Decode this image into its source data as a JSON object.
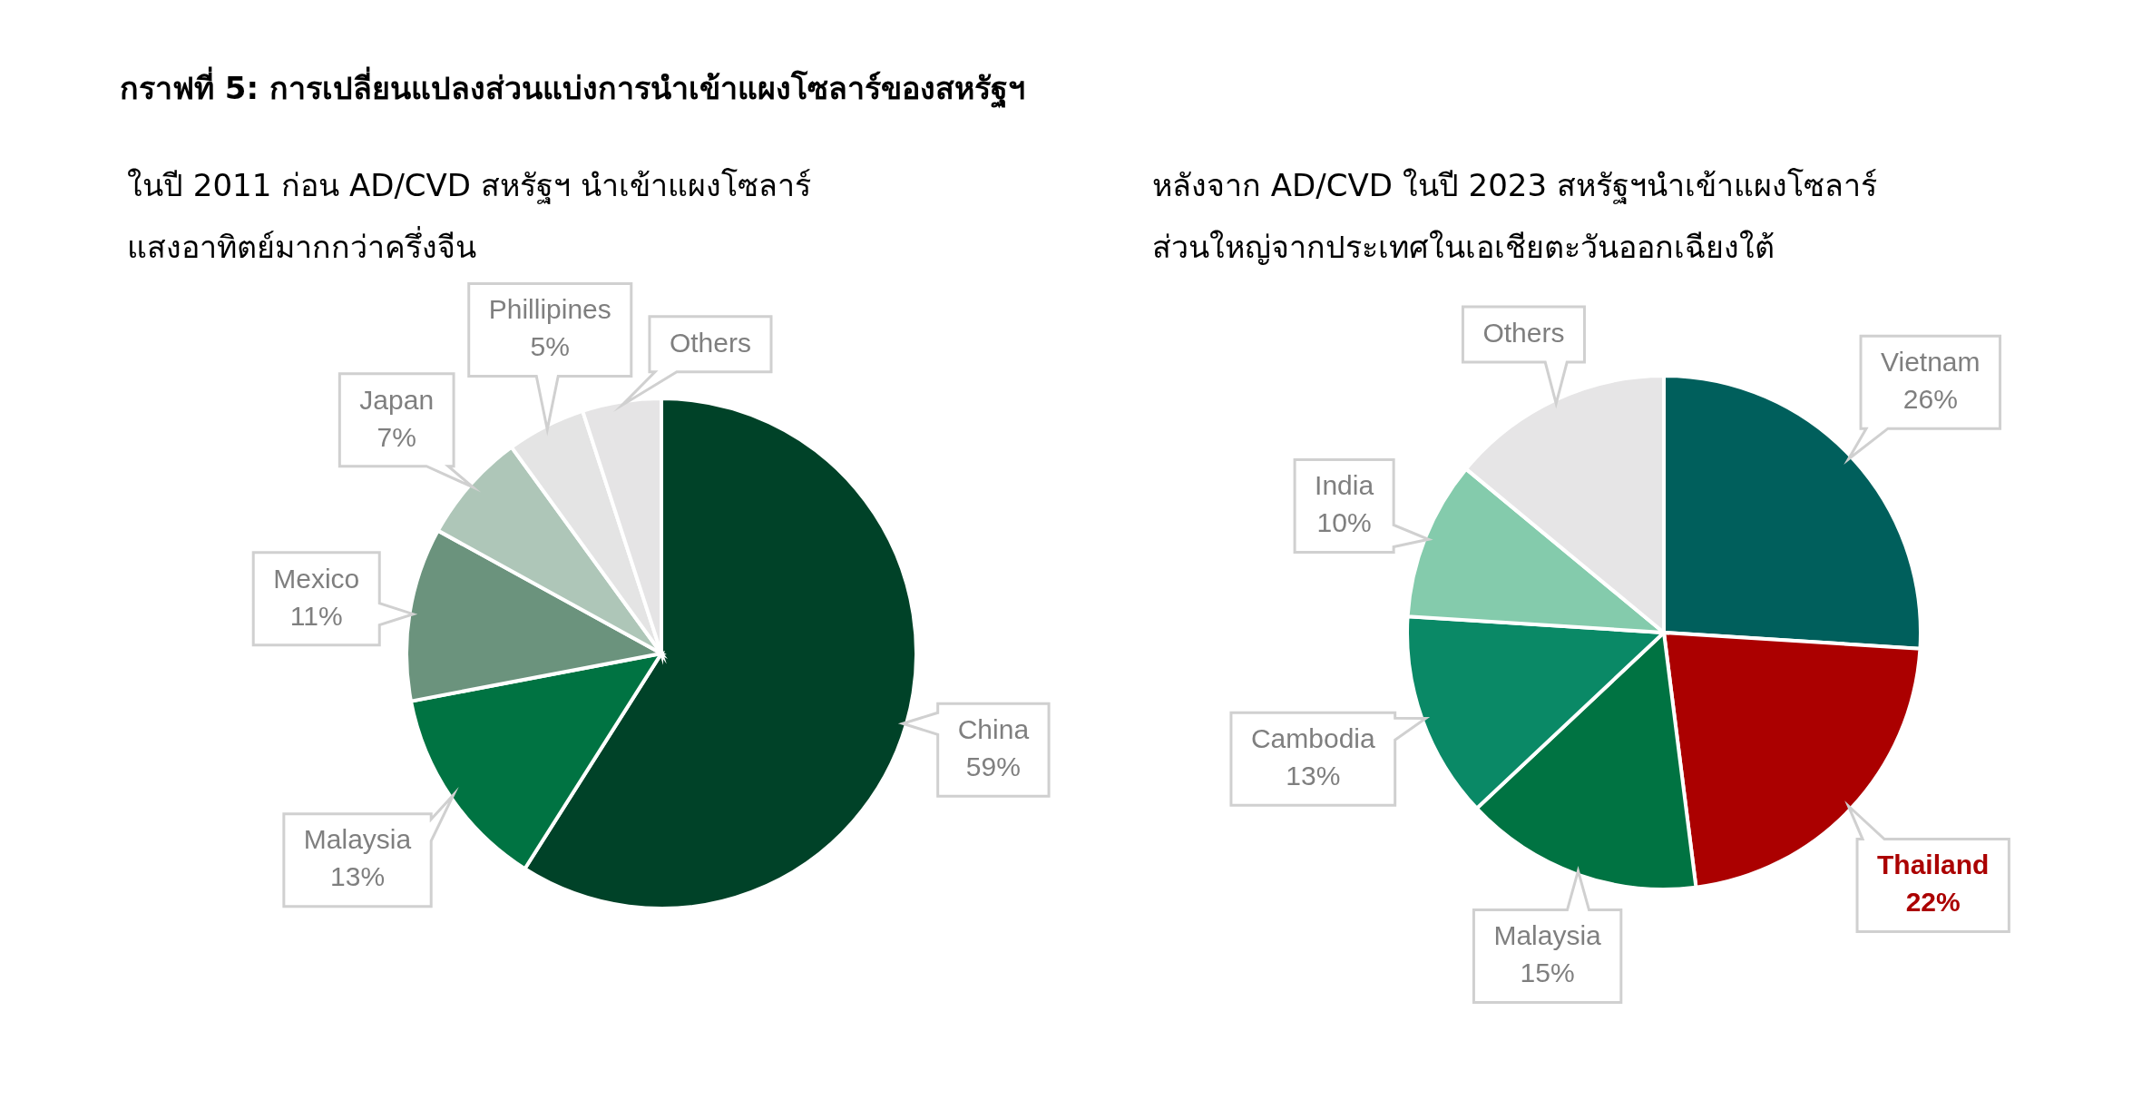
{
  "chart_data": [
    {
      "type": "pie",
      "title": "กราฟที่ 5: การเปลี่ยนแปลงส่วนแบ่งการนำเข้าแผงโซลาร์ของสหรัฐฯ",
      "subtitle": "ในปี 2011 ก่อน AD/CVD สหรัฐฯ นำเข้าแผงโซลาร์แสงอาทิตย์มากกว่าครึ่งจีน",
      "categories": [
        "China",
        "Malaysia",
        "Mexico",
        "Japan",
        "Phillipines",
        "Others"
      ],
      "values": [
        59,
        13,
        11,
        7,
        5,
        5
      ],
      "value_labels": [
        "59%",
        "13%",
        "11%",
        "7%",
        "5%",
        null
      ],
      "colors": [
        "#004228",
        "#007342",
        "#6b937d",
        "#aec6b8",
        "#e4e4e4",
        "#e5e4e5"
      ]
    },
    {
      "type": "pie",
      "subtitle": "หลังจาก AD/CVD ในปี 2023 สหรัฐฯนำเข้าแผงโซลาร์ส่วนใหญ่จากประเทศในเอเชียตะวันออกเฉียงใต้",
      "categories": [
        "Vietnam",
        "Thailand",
        "Malaysia",
        "Cambodia",
        "India",
        "Others"
      ],
      "values": [
        26,
        22,
        15,
        13,
        10,
        14
      ],
      "value_labels": [
        "26%",
        "22%",
        "15%",
        "13%",
        "10%",
        null
      ],
      "colors": [
        "#005f5c",
        "#ab0000",
        "#007342",
        "#0a8966",
        "#84cbac",
        "#e6e5e6"
      ]
    }
  ]
}
